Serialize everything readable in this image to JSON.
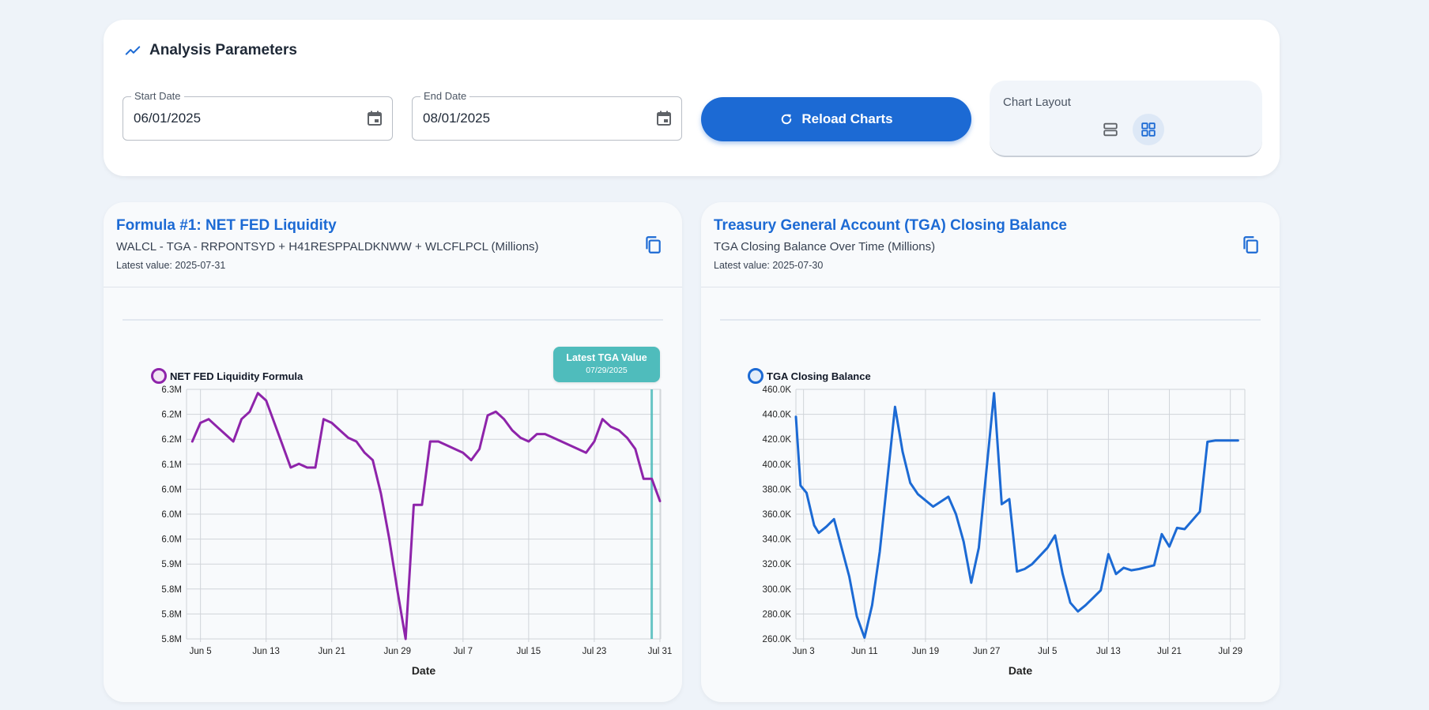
{
  "params": {
    "title": "Analysis Parameters",
    "start_label": "Start Date",
    "start_value": "06/01/2025",
    "end_label": "End Date",
    "end_value": "08/01/2025",
    "reload_label": "Reload Charts",
    "layout_label": "Chart Layout"
  },
  "chart1": {
    "title": "Formula #1: NET FED Liquidity",
    "subtitle": "WALCL - TGA - RRPONTSYD + H41RESPPALDKNWW + WLCFLPCL (Millions)",
    "latest": "Latest value: 2025-07-31",
    "badge_title": "Latest TGA Value",
    "badge_date": "07/29/2025",
    "legend": "NET FED Liquidity Formula",
    "color": "#8e24aa"
  },
  "chart2": {
    "title": "Treasury General Account (TGA) Closing Balance",
    "subtitle": "TGA Closing Balance Over Time (Millions)",
    "latest": "Latest value: 2025-07-30",
    "legend": "TGA Closing Balance",
    "color": "#1c6ad4"
  },
  "chart_data": [
    {
      "type": "line",
      "series": [
        {
          "name": "NET FED Liquidity Formula",
          "color": "#8e24aa",
          "x": [
            4,
            5,
            6,
            7,
            8,
            9,
            10,
            11,
            12,
            13,
            14,
            15,
            16,
            17,
            18,
            19,
            20,
            21,
            22,
            23,
            24,
            25,
            26,
            27,
            28,
            29,
            30,
            31,
            32,
            33,
            34,
            35,
            36,
            37,
            38,
            39,
            40,
            41,
            42,
            43,
            44,
            45,
            46,
            47,
            48,
            49,
            50,
            51,
            52,
            53,
            54,
            55,
            56,
            57,
            58,
            59,
            60,
            61
          ],
          "y": [
            6.16,
            6.21,
            6.22,
            6.2,
            6.18,
            6.16,
            6.22,
            6.24,
            6.29,
            6.27,
            6.21,
            6.15,
            6.09,
            6.1,
            6.09,
            6.09,
            6.22,
            6.21,
            6.19,
            6.17,
            6.16,
            6.13,
            6.11,
            6.02,
            5.9,
            5.76,
            5.63,
            5.99,
            5.99,
            6.16,
            6.16,
            6.15,
            6.14,
            6.13,
            6.11,
            6.14,
            6.23,
            6.24,
            6.22,
            6.19,
            6.17,
            6.16,
            6.18,
            6.18,
            6.17,
            6.16,
            6.15,
            6.14,
            6.13,
            6.16,
            6.22,
            6.2,
            6.19,
            6.17,
            6.14,
            6.06,
            6.06,
            6.0
          ]
        }
      ],
      "xlabel": "Date",
      "x_ticks": [
        "Jun 5",
        "Jun 13",
        "Jun 21",
        "Jun 29",
        "Jul 7",
        "Jul 15",
        "Jul 23",
        "Jul 31"
      ],
      "x_tick_pos": [
        5,
        13,
        21,
        29,
        37,
        45,
        53,
        61
      ],
      "xlim": [
        3.3,
        61.1
      ],
      "y_ticks": [
        "5.8M",
        "5.8M",
        "5.8M",
        "5.9M",
        "6.0M",
        "6.0M",
        "6.0M",
        "6.1M",
        "6.2M",
        "6.2M",
        "6.3M"
      ],
      "ylim": [
        5.63,
        6.3
      ],
      "tga_marker_x": 60,
      "grid": true,
      "legend_position": "top-left"
    },
    {
      "type": "line",
      "series": [
        {
          "name": "TGA Closing Balance",
          "color": "#1c6ad4",
          "x": [
            2,
            2.6,
            3.4,
            4.4,
            5,
            6,
            7,
            9,
            10,
            11,
            12,
            13,
            15,
            16,
            17,
            18,
            20,
            22,
            23,
            24,
            25,
            26,
            28,
            29,
            30,
            31,
            32,
            33,
            35,
            36,
            37,
            38,
            39,
            40,
            41,
            42,
            43,
            44,
            45,
            46,
            47,
            49,
            50,
            51,
            52,
            53,
            55,
            56,
            57,
            58,
            59,
            60
          ],
          "y": [
            438,
            383,
            377,
            351,
            345,
            350,
            356,
            310,
            278,
            261,
            287,
            330,
            446,
            410,
            385,
            376,
            366,
            374,
            360,
            338,
            305,
            333,
            457,
            368,
            372,
            314,
            316,
            320,
            333,
            343,
            312,
            289,
            282,
            287,
            293,
            299,
            328,
            312,
            317,
            315,
            316,
            319,
            344,
            334,
            349,
            348,
            362,
            418,
            419,
            419,
            419,
            419
          ]
        }
      ],
      "xlabel": "Date",
      "x_ticks": [
        "Jun 3",
        "Jun 11",
        "Jun 19",
        "Jun 27",
        "Jul 5",
        "Jul 13",
        "Jul 21",
        "Jul 29"
      ],
      "x_tick_pos": [
        3,
        11,
        19,
        27,
        35,
        43,
        51,
        59
      ],
      "xlim": [
        2,
        60.9
      ],
      "y_ticks": [
        "260.0K",
        "280.0K",
        "300.0K",
        "320.0K",
        "340.0K",
        "360.0K",
        "380.0K",
        "400.0K",
        "420.0K",
        "440.0K",
        "460.0K"
      ],
      "ylim": [
        260,
        460
      ],
      "grid": true,
      "legend_position": "top-left"
    }
  ]
}
